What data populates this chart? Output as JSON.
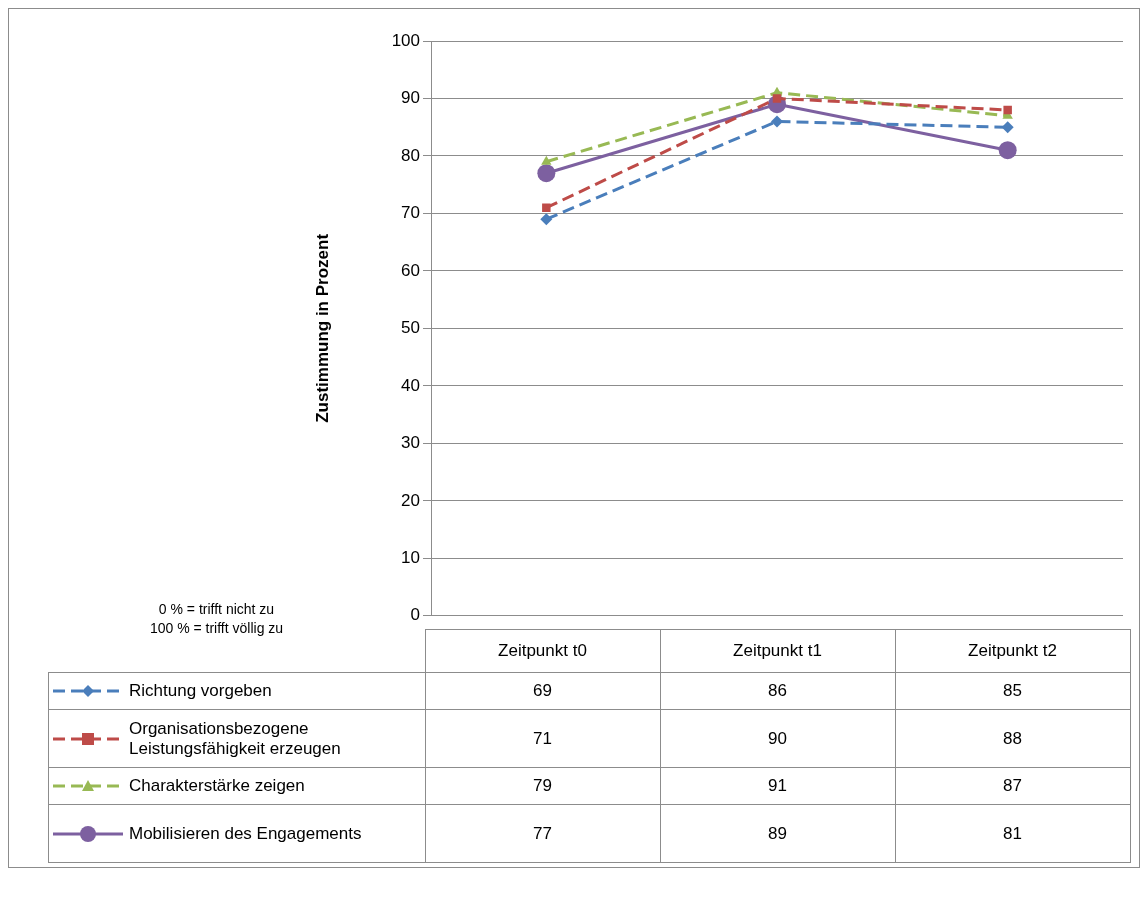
{
  "chart_data": {
    "type": "line",
    "ylabel": "Zustimmung in Prozent",
    "annotations": [
      "0 % = trifft nicht zu",
      "100 % = trifft völlig zu"
    ],
    "categories": [
      "Zeitpunkt t0",
      "Zeitpunkt t1",
      "Zeitpunkt t2"
    ],
    "series": [
      {
        "name": "Richtung vorgeben",
        "color": "#4a7ebb",
        "values": [
          69,
          86,
          85
        ],
        "marker": "diamond",
        "line_style": "dashed"
      },
      {
        "name": "Organisationsbezogene Leistungsfähigkeit erzeugen",
        "color": "#be4b48",
        "values": [
          71,
          90,
          88
        ],
        "marker": "square",
        "line_style": "dashed"
      },
      {
        "name": "Charakterstärke zeigen",
        "color": "#98b954",
        "values": [
          79,
          91,
          87
        ],
        "marker": "triangle",
        "line_style": "dashed"
      },
      {
        "name": "Mobilisieren des Engagements",
        "color": "#7d60a0",
        "values": [
          77,
          89,
          81
        ],
        "marker": "circle",
        "line_style": "solid"
      }
    ],
    "ylim": [
      0,
      100
    ],
    "yticks": [
      0,
      10,
      20,
      30,
      40,
      50,
      60,
      70,
      80,
      90,
      100
    ],
    "grid": "y",
    "legend": "bottom",
    "data_labels": true
  }
}
